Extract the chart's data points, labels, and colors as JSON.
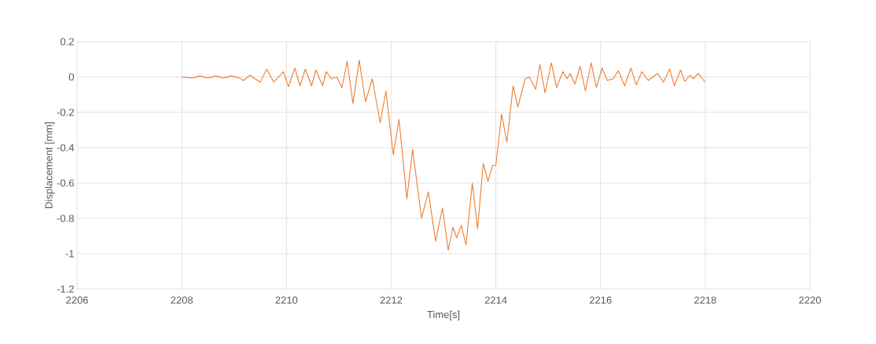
{
  "chart_data": {
    "type": "line",
    "xlabel": "Time[s]",
    "ylabel": "Displacement [mm]",
    "xlim": [
      2206,
      2220
    ],
    "ylim": [
      -1.2,
      0.2
    ],
    "xticks": [
      2206,
      2208,
      2210,
      2212,
      2214,
      2216,
      2218,
      2220
    ],
    "yticks": [
      -1.2,
      -1,
      -0.8,
      -0.6,
      -0.4,
      -0.2,
      0,
      0.2
    ],
    "grid": true,
    "legend": false,
    "marker": "none",
    "line_style": "solid",
    "series": [
      {
        "color": "#ed7d31",
        "x": [
          2208.0,
          2208.2,
          2208.35,
          2208.5,
          2208.65,
          2208.8,
          2208.95,
          2209.1,
          2209.18,
          2209.3,
          2209.5,
          2209.62,
          2209.76,
          2209.94,
          2210.04,
          2210.16,
          2210.26,
          2210.36,
          2210.48,
          2210.56,
          2210.69,
          2210.76,
          2210.86,
          2210.96,
          2211.06,
          2211.16,
          2211.27,
          2211.39,
          2211.51,
          2211.64,
          2211.79,
          2211.9,
          2212.04,
          2212.15,
          2212.3,
          2212.41,
          2212.58,
          2212.71,
          2212.85,
          2212.98,
          2213.09,
          2213.18,
          2213.25,
          2213.34,
          2213.43,
          2213.55,
          2213.65,
          2213.76,
          2213.85,
          2213.94,
          2214.0,
          2214.11,
          2214.21,
          2214.33,
          2214.42,
          2214.56,
          2214.64,
          2214.76,
          2214.84,
          2214.94,
          2215.06,
          2215.16,
          2215.28,
          2215.36,
          2215.42,
          2215.51,
          2215.61,
          2215.71,
          2215.82,
          2215.92,
          2216.03,
          2216.13,
          2216.24,
          2216.34,
          2216.46,
          2216.58,
          2216.68,
          2216.79,
          2216.91,
          2217.09,
          2217.2,
          2217.32,
          2217.41,
          2217.53,
          2217.61,
          2217.71,
          2217.77,
          2217.87,
          2218.0
        ],
        "values": [
          0,
          -0.005,
          0.005,
          -0.005,
          0.005,
          -0.005,
          0.005,
          -0.005,
          -0.02,
          0.01,
          -0.03,
          0.045,
          -0.03,
          0.03,
          -0.055,
          0.05,
          -0.05,
          0.045,
          -0.05,
          0.04,
          -0.05,
          0.03,
          -0.01,
          0,
          -0.06,
          0.09,
          -0.15,
          0.095,
          -0.14,
          -0.01,
          -0.26,
          -0.08,
          -0.44,
          -0.24,
          -0.69,
          -0.41,
          -0.8,
          -0.65,
          -0.93,
          -0.74,
          -0.98,
          -0.85,
          -0.91,
          -0.84,
          -0.95,
          -0.6,
          -0.86,
          -0.49,
          -0.59,
          -0.5,
          -0.5,
          -0.21,
          -0.37,
          -0.05,
          -0.17,
          -0.01,
          0,
          -0.07,
          0.07,
          -0.09,
          0.08,
          -0.06,
          0.03,
          -0.01,
          0.02,
          -0.04,
          0.06,
          -0.08,
          0.08,
          -0.06,
          0.05,
          -0.02,
          -0.01,
          0.035,
          -0.05,
          0.05,
          -0.045,
          0.03,
          -0.02,
          0.02,
          -0.03,
          0.045,
          -0.05,
          0.04,
          -0.025,
          0.01,
          -0.01,
          0.02,
          -0.03
        ]
      }
    ]
  }
}
